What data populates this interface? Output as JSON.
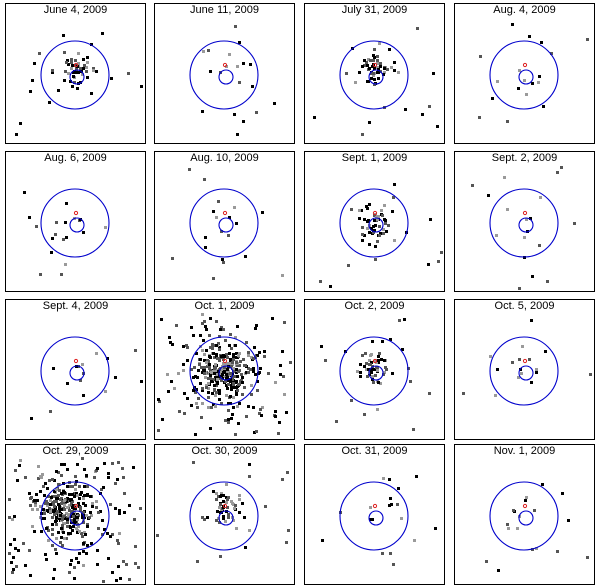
{
  "panels": [
    {
      "date": "June 4, 2009",
      "intensity": "medium",
      "cluster_offset": "up"
    },
    {
      "date": "June 11, 2009",
      "intensity": "low",
      "cluster_offset": "center"
    },
    {
      "date": "July 31, 2009",
      "intensity": "medium",
      "cluster_offset": "up"
    },
    {
      "date": "Aug. 4, 2009",
      "intensity": "low",
      "cluster_offset": "center"
    },
    {
      "date": "Aug. 6, 2009",
      "intensity": "low",
      "cluster_offset": "center"
    },
    {
      "date": "Aug. 10, 2009",
      "intensity": "low",
      "cluster_offset": "center"
    },
    {
      "date": "Sept. 1, 2009",
      "intensity": "medium",
      "cluster_offset": "center"
    },
    {
      "date": "Sept. 2, 2009",
      "intensity": "low",
      "cluster_offset": "center"
    },
    {
      "date": "Sept. 4, 2009",
      "intensity": "low",
      "cluster_offset": "center"
    },
    {
      "date": "Oct. 1, 2009",
      "intensity": "high",
      "cluster_offset": "center"
    },
    {
      "date": "Oct. 2, 2009",
      "intensity": "medium",
      "cluster_offset": "up"
    },
    {
      "date": "Oct. 5, 2009",
      "intensity": "low",
      "cluster_offset": "center"
    },
    {
      "date": "Oct. 29, 2009",
      "intensity": "high",
      "cluster_offset": "left"
    },
    {
      "date": "Oct. 30, 2009",
      "intensity": "medium",
      "cluster_offset": "up"
    },
    {
      "date": "Oct. 31, 2009",
      "intensity": "low",
      "cluster_offset": "center"
    },
    {
      "date": "Nov. 1, 2009",
      "intensity": "low",
      "cluster_offset": "center"
    }
  ],
  "colors": {
    "frame": "#000000",
    "region": "#0000cc",
    "source_marker": "#dd2222",
    "counts_dark": "#000000",
    "counts_mid": "#555555",
    "counts_light": "#9a9a9a"
  }
}
